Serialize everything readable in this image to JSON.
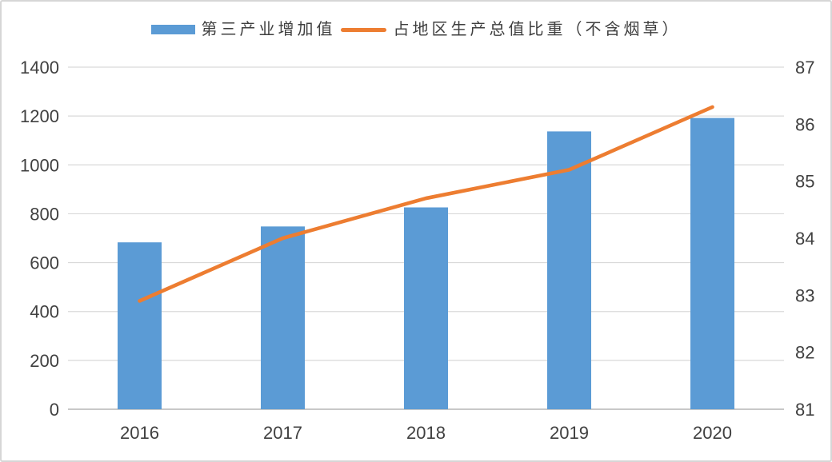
{
  "chart_data": {
    "type": "combo-bar-line",
    "title": "",
    "categories": [
      "2016",
      "2017",
      "2018",
      "2019",
      "2020"
    ],
    "series": [
      {
        "name": "第三产业增加值",
        "chart": "bar",
        "axis": "left",
        "color": "#5B9BD5",
        "values": [
          683,
          748,
          826,
          1137,
          1192
        ]
      },
      {
        "name": "占地区生产总值比重（不含烟草）",
        "chart": "line",
        "axis": "right",
        "color": "#ED7D31",
        "values": [
          82.9,
          84.0,
          84.7,
          85.2,
          86.3
        ]
      }
    ],
    "left_axis": {
      "min": 0,
      "max": 1400,
      "step": 200,
      "tick_labels": [
        "0",
        "200",
        "400",
        "600",
        "800",
        "1000",
        "1200",
        "1400"
      ]
    },
    "right_axis": {
      "min": 81,
      "max": 87,
      "step": 1,
      "tick_labels": [
        "81",
        "82",
        "83",
        "84",
        "85",
        "86",
        "87"
      ]
    },
    "legend_position": "top",
    "grid": true,
    "axis_label_color": "#404040",
    "gridline_color": "#D9D9D9",
    "axis_line_color": "#C0C0C0"
  }
}
